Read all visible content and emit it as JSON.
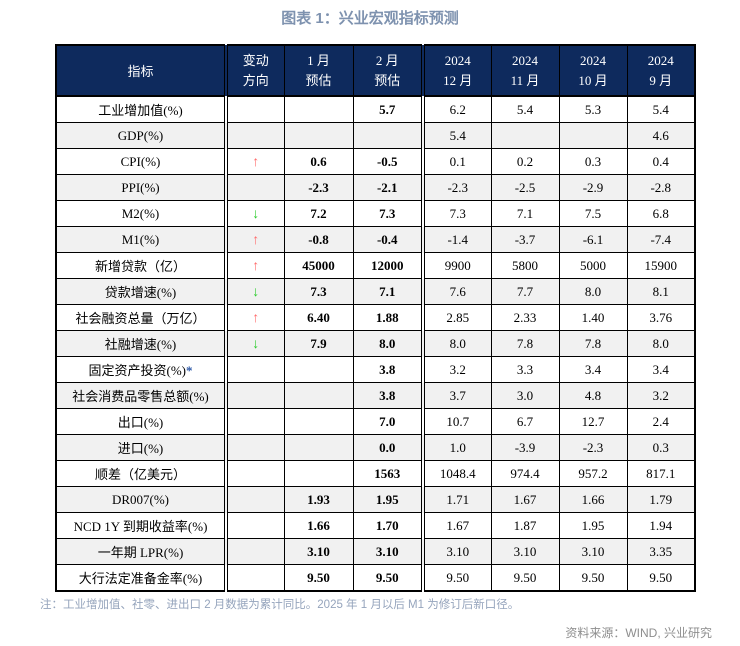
{
  "title": "图表 1：兴业宏观指标预测",
  "note": "注：工业增加值、社零、进出口 2 月数据为累计同比。2025 年 1 月以后 M1 为修订后新口径。",
  "source": "资料来源：WIND, 兴业研究",
  "icons": {
    "up_arrow": "↑",
    "down_arrow": "↓"
  },
  "colors": {
    "header_bg": "#0e2a5d",
    "stripe_bg": "#f1f1f1",
    "up_red": "#ff6b6b",
    "down_green": "#2ecc2e",
    "star_blue": "#2b57a7",
    "title_color": "#7e92af",
    "note_color": "#95a4bc",
    "source_color": "#8e8e8e"
  },
  "table": {
    "header": {
      "indicator": "指标",
      "columns": [
        {
          "line1": "变动",
          "line2": "方向"
        },
        {
          "line1": "1 月",
          "line2": "预估"
        },
        {
          "line1": "2 月",
          "line2": "预估"
        },
        {
          "line1": "2024",
          "line2": "12 月"
        },
        {
          "line1": "2024",
          "line2": "11 月"
        },
        {
          "line1": "2024",
          "line2": "10 月"
        },
        {
          "line1": "2024",
          "line2": "9 月"
        }
      ]
    },
    "rows": [
      {
        "label": "工业增加值(%)",
        "suffix": "",
        "direction": "",
        "jan": "",
        "feb": "5.7",
        "m12": "6.2",
        "m11": "5.4",
        "m10": "5.3",
        "m9": "5.4"
      },
      {
        "label": "GDP(%)",
        "suffix": "",
        "direction": "",
        "jan": "",
        "feb": "",
        "m12": "5.4",
        "m11": "",
        "m10": "",
        "m9": "4.6"
      },
      {
        "label": "CPI(%)",
        "suffix": "",
        "direction": "up",
        "jan": "0.6",
        "feb": "-0.5",
        "m12": "0.1",
        "m11": "0.2",
        "m10": "0.3",
        "m9": "0.4"
      },
      {
        "label": "PPI(%)",
        "suffix": "",
        "direction": "",
        "jan": "-2.3",
        "feb": "-2.1",
        "m12": "-2.3",
        "m11": "-2.5",
        "m10": "-2.9",
        "m9": "-2.8"
      },
      {
        "label": "M2(%)",
        "suffix": "",
        "direction": "down",
        "jan": "7.2",
        "feb": "7.3",
        "m12": "7.3",
        "m11": "7.1",
        "m10": "7.5",
        "m9": "6.8"
      },
      {
        "label": "M1(%)",
        "suffix": "",
        "direction": "up",
        "jan": "-0.8",
        "feb": "-0.4",
        "m12": "-1.4",
        "m11": "-3.7",
        "m10": "-6.1",
        "m9": "-7.4"
      },
      {
        "label": "新增贷款（亿）",
        "suffix": "",
        "direction": "up",
        "jan": "45000",
        "feb": "12000",
        "m12": "9900",
        "m11": "5800",
        "m10": "5000",
        "m9": "15900"
      },
      {
        "label": "贷款增速(%)",
        "suffix": "",
        "direction": "down",
        "jan": "7.3",
        "feb": "7.1",
        "m12": "7.6",
        "m11": "7.7",
        "m10": "8.0",
        "m9": "8.1"
      },
      {
        "label": "社会融资总量（万亿）",
        "suffix": "",
        "direction": "up",
        "jan": "6.40",
        "feb": "1.88",
        "m12": "2.85",
        "m11": "2.33",
        "m10": "1.40",
        "m9": "3.76"
      },
      {
        "label": "社融增速(%)",
        "suffix": "",
        "direction": "down",
        "jan": "7.9",
        "feb": "8.0",
        "m12": "8.0",
        "m11": "7.8",
        "m10": "7.8",
        "m9": "8.0"
      },
      {
        "label": "固定资产投资(%)",
        "suffix": "*",
        "direction": "",
        "jan": "",
        "feb": "3.8",
        "m12": "3.2",
        "m11": "3.3",
        "m10": "3.4",
        "m9": "3.4"
      },
      {
        "label": "社会消费品零售总额(%)",
        "suffix": "",
        "direction": "",
        "jan": "",
        "feb": "3.8",
        "m12": "3.7",
        "m11": "3.0",
        "m10": "4.8",
        "m9": "3.2"
      },
      {
        "label": "出口(%)",
        "suffix": "",
        "direction": "",
        "jan": "",
        "feb": "7.0",
        "m12": "10.7",
        "m11": "6.7",
        "m10": "12.7",
        "m9": "2.4"
      },
      {
        "label": "进口(%)",
        "suffix": "",
        "direction": "",
        "jan": "",
        "feb": "0.0",
        "m12": "1.0",
        "m11": "-3.9",
        "m10": "-2.3",
        "m9": "0.3"
      },
      {
        "label": "顺差（亿美元）",
        "suffix": "",
        "direction": "",
        "jan": "",
        "feb": "1563",
        "m12": "1048.4",
        "m11": "974.4",
        "m10": "957.2",
        "m9": "817.1"
      },
      {
        "label": "DR007(%)",
        "suffix": "",
        "direction": "",
        "jan": "1.93",
        "feb": "1.95",
        "m12": "1.71",
        "m11": "1.67",
        "m10": "1.66",
        "m9": "1.79"
      },
      {
        "label": "NCD 1Y 到期收益率(%)",
        "suffix": "",
        "direction": "",
        "jan": "1.66",
        "feb": "1.70",
        "m12": "1.67",
        "m11": "1.87",
        "m10": "1.95",
        "m9": "1.94"
      },
      {
        "label": "一年期 LPR(%)",
        "suffix": "",
        "direction": "",
        "jan": "3.10",
        "feb": "3.10",
        "m12": "3.10",
        "m11": "3.10",
        "m10": "3.10",
        "m9": "3.35"
      },
      {
        "label": "大行法定准备金率(%)",
        "suffix": "",
        "direction": "",
        "jan": "9.50",
        "feb": "9.50",
        "m12": "9.50",
        "m11": "9.50",
        "m10": "9.50",
        "m9": "9.50"
      }
    ]
  }
}
